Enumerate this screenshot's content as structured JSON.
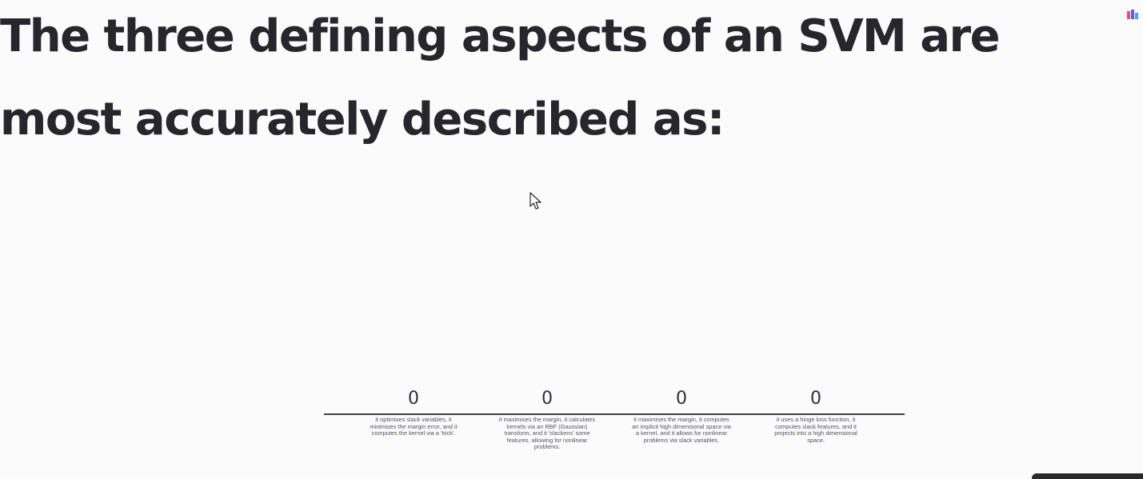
{
  "question": {
    "title": "The three defining aspects of an SVM are most accurately described as:"
  },
  "icons": {
    "brand_logo": "mentimeter-logo-icon",
    "cursor": "mouse-pointer-icon"
  },
  "options": [
    {
      "count": "0",
      "label": "it optimises slack variables, it minimises the margin error, and it computes the kernel via a 'trick'."
    },
    {
      "count": "0",
      "label": "it maximises the margin, it calculates kernels via an RBF (Gaussian) transform, and it 'slackens' some features, allowing for nonlinear problems."
    },
    {
      "count": "0",
      "label": "it maximises the margin, it computes an implicit high dimensional space via a kernel, and it allows for nonlinear problems via slack variables."
    },
    {
      "count": "0",
      "label": "it uses a hinge loss function, it computes slack features, and it projects into a high dimensional space."
    }
  ],
  "colors": {
    "background": "#fbfbfc",
    "text": "#26262c",
    "baseline": "#3c3c42"
  }
}
